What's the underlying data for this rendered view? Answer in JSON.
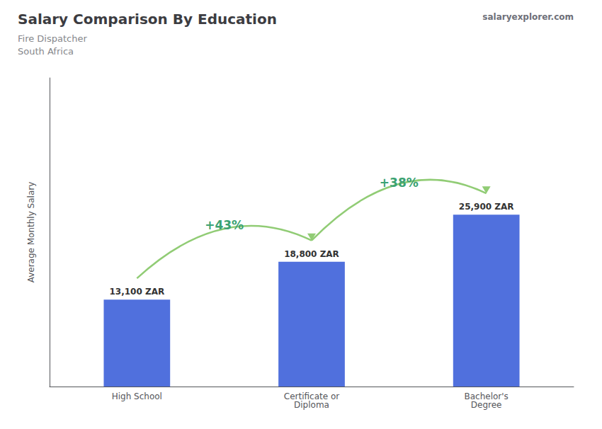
{
  "chart_data": {
    "type": "bar",
    "title": "Salary Comparison By Education",
    "subtitle": [
      "Fire Dispatcher",
      "South Africa"
    ],
    "categories": [
      "High School",
      "Certificate or\nDiploma",
      "Bachelor's\nDegree"
    ],
    "values": [
      13100,
      18800,
      25900
    ],
    "value_labels": [
      "13,100 ZAR",
      "18,800 ZAR",
      "25,900 ZAR"
    ],
    "data_labels": true,
    "annotations": [
      "+43%",
      "+38%"
    ],
    "source": "salaryexplorer.com",
    "ylabel": "Average Monthly Salary",
    "ylim": [
      0,
      46500
    ],
    "tick_labels": "x",
    "grid": false
  }
}
